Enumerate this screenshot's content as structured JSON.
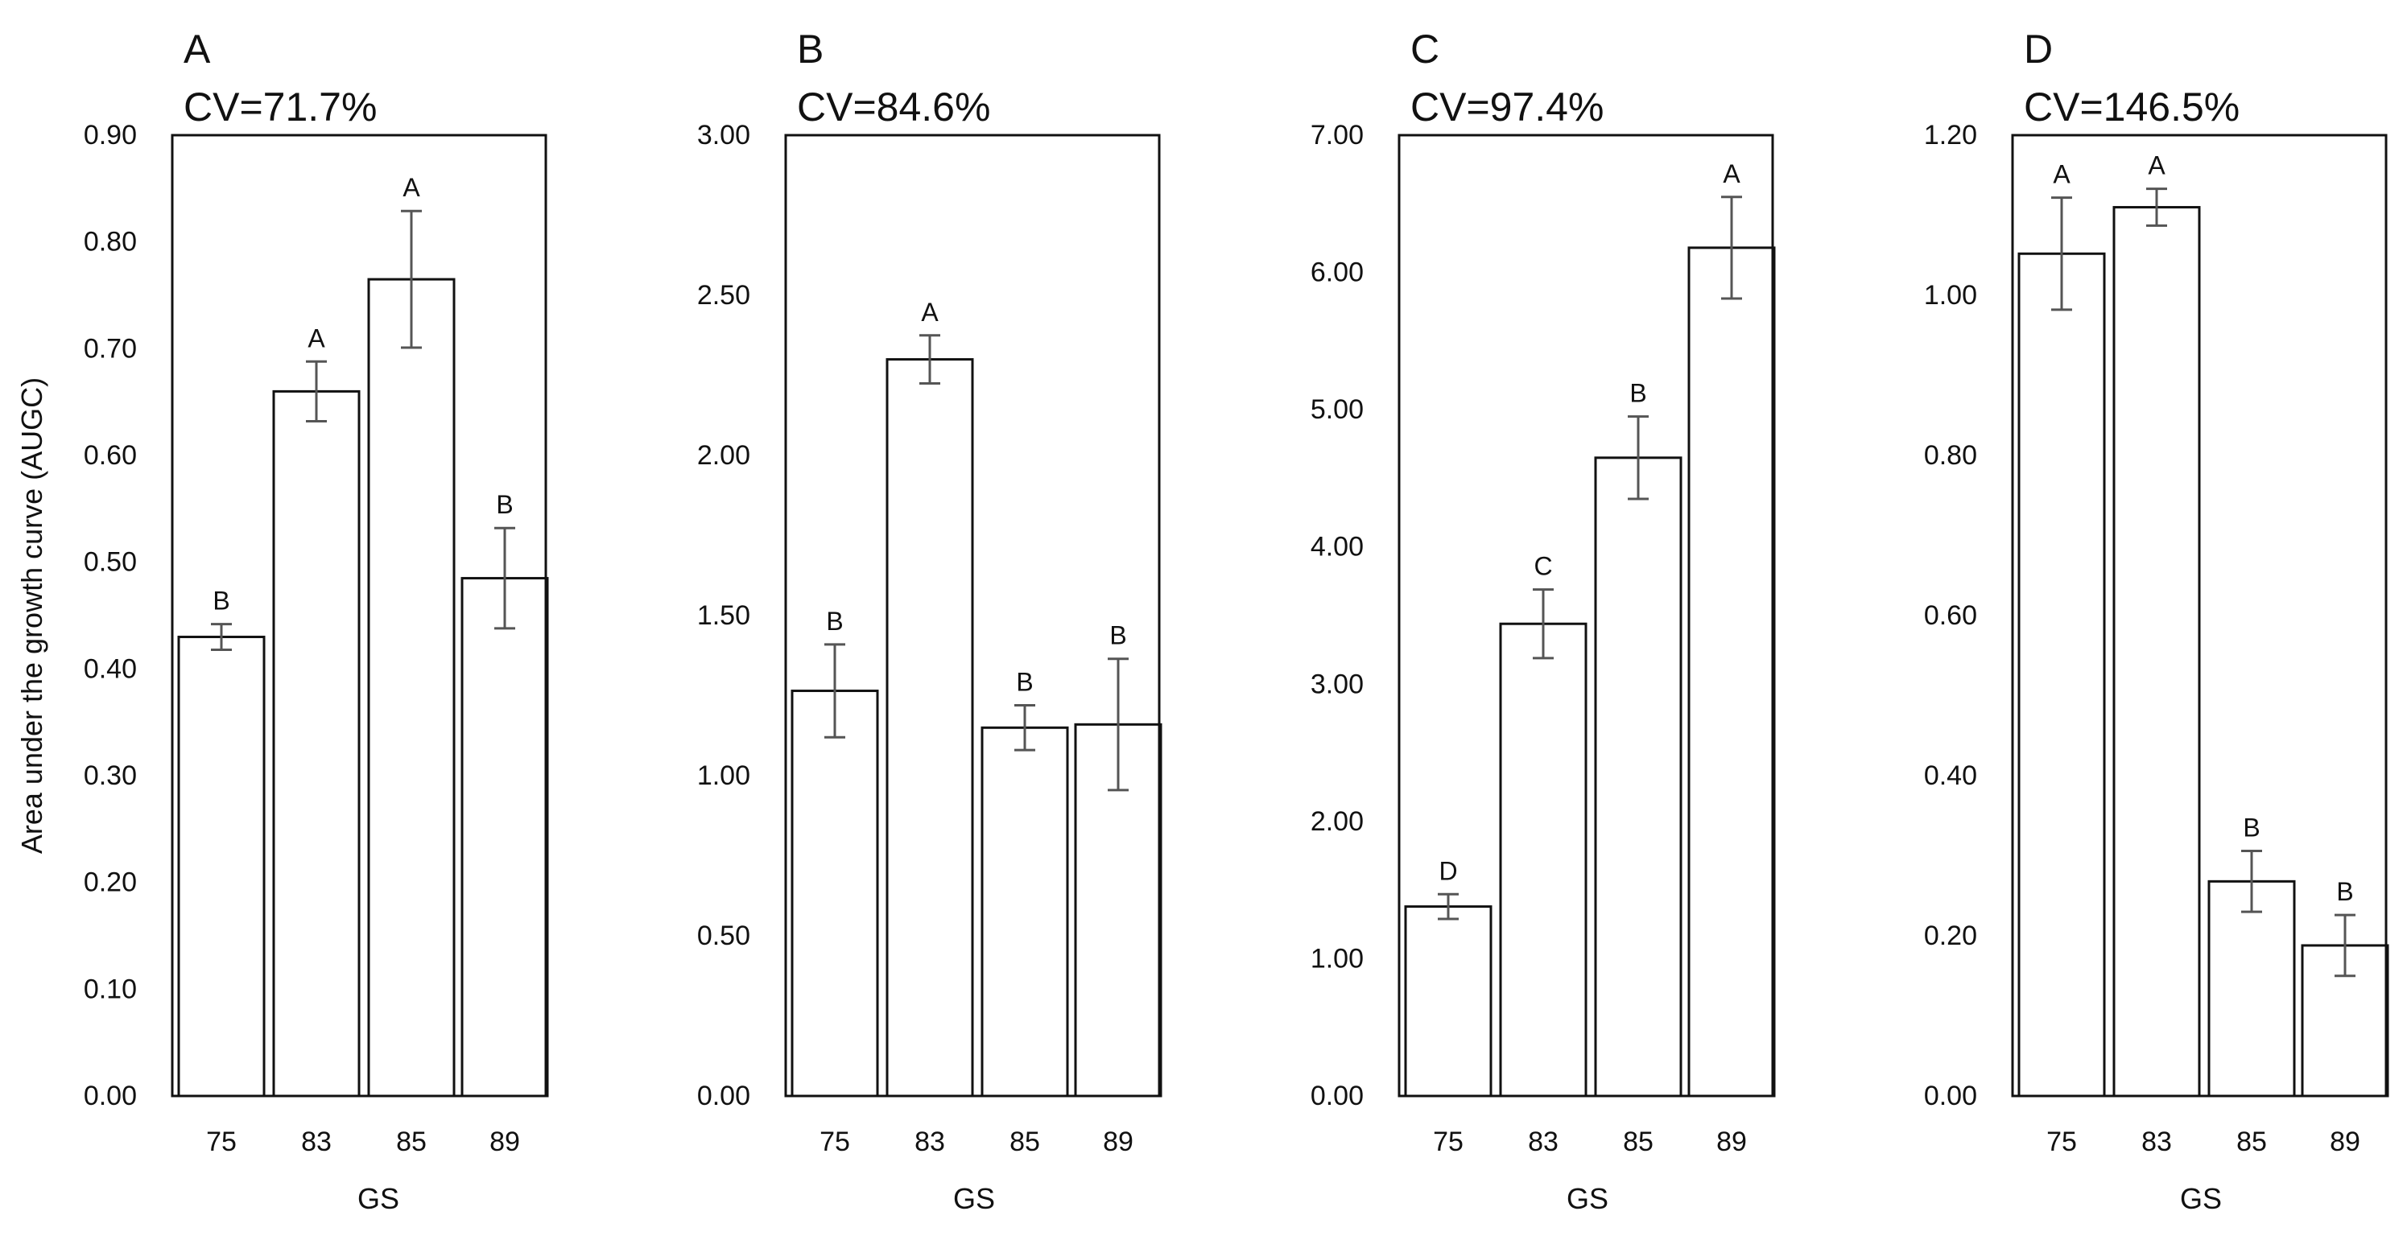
{
  "figure": {
    "ylabel": "Area under the growth curve (AUGC)",
    "xlabel": "GS"
  },
  "chart_data": [
    {
      "type": "bar",
      "panel": "A",
      "title": "CV=71.7%",
      "categories": [
        "75",
        "83",
        "85",
        "89"
      ],
      "values": [
        0.43,
        0.66,
        0.765,
        0.485
      ],
      "errors": [
        0.012,
        0.028,
        0.064,
        0.047
      ],
      "letters": [
        "B",
        "A",
        "A",
        "B"
      ],
      "ylim": [
        0,
        0.9
      ],
      "yticks": [
        "0.00",
        "0.10",
        "0.20",
        "0.30",
        "0.40",
        "0.50",
        "0.60",
        "0.70",
        "0.80",
        "0.90"
      ],
      "xlabel": "",
      "ylabel": "Area under the growth curve (AUGC)"
    },
    {
      "type": "bar",
      "panel": "B",
      "title": "CV=84.6%",
      "categories": [
        "75",
        "83",
        "85",
        "89"
      ],
      "values": [
        1.265,
        2.3,
        1.15,
        1.16
      ],
      "errors": [
        0.145,
        0.075,
        0.07,
        0.205
      ],
      "letters": [
        "B",
        "A",
        "B",
        "B"
      ],
      "ylim": [
        0,
        3.0
      ],
      "yticks": [
        "0.00",
        "0.50",
        "1.00",
        "1.50",
        "2.00",
        "2.50",
        "3.00"
      ],
      "xlabel": "GS",
      "ylabel": ""
    },
    {
      "type": "bar",
      "panel": "C",
      "title": "CV=97.4%",
      "categories": [
        "75",
        "83",
        "85",
        "89"
      ],
      "values": [
        1.38,
        3.44,
        4.65,
        6.18
      ],
      "errors": [
        0.09,
        0.25,
        0.3,
        0.37
      ],
      "letters": [
        "D",
        "C",
        "B",
        "A"
      ],
      "ylim": [
        0,
        7.0
      ],
      "yticks": [
        "0.00",
        "1.00",
        "2.00",
        "3.00",
        "4.00",
        "5.00",
        "6.00",
        "7.00"
      ],
      "xlabel": "GS",
      "ylabel": ""
    },
    {
      "type": "bar",
      "panel": "D",
      "title": "CV=146.5%",
      "categories": [
        "75",
        "83",
        "85",
        "89"
      ],
      "values": [
        1.052,
        1.11,
        0.268,
        0.188
      ],
      "errors": [
        0.07,
        0.023,
        0.038,
        0.038
      ],
      "letters": [
        "A",
        "A",
        "B",
        "B"
      ],
      "ylim": [
        0,
        1.2
      ],
      "yticks": [
        "0.00",
        "0.20",
        "0.40",
        "0.60",
        "0.80",
        "1.00",
        "1.20"
      ],
      "xlabel": "GS",
      "ylabel": ""
    }
  ]
}
